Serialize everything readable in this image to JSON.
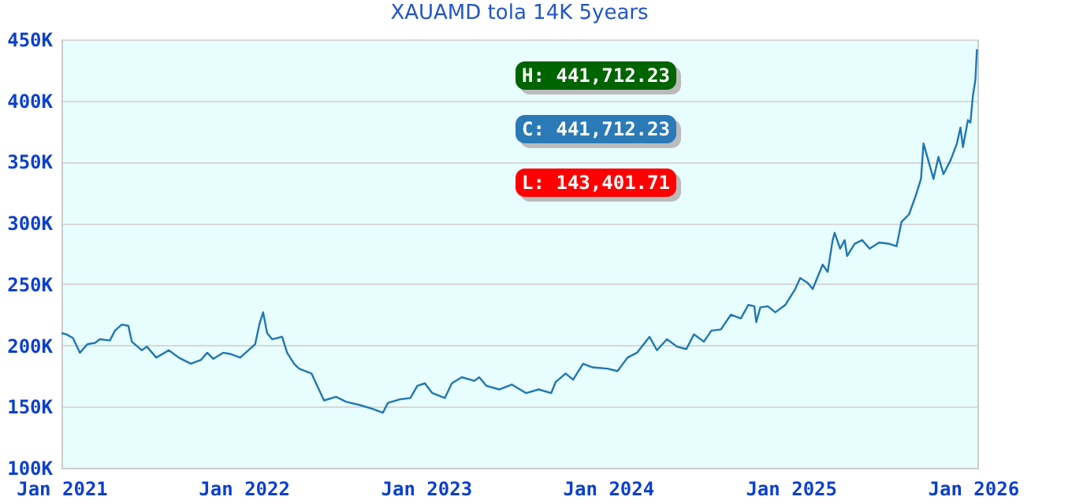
{
  "chart_data": {
    "type": "line",
    "title": "XAUAMD tola 14K 5years",
    "x": [
      "2021-01-01",
      "2021-01-11",
      "2021-01-24",
      "2021-02-07",
      "2021-02-22",
      "2021-03-09",
      "2021-03-19",
      "2021-04-08",
      "2021-04-18",
      "2021-05-02",
      "2021-05-15",
      "2021-05-22",
      "2021-06-11",
      "2021-06-21",
      "2021-07-10",
      "2021-08-04",
      "2021-08-24",
      "2021-09-17",
      "2021-10-07",
      "2021-10-20",
      "2021-11-01",
      "2021-11-21",
      "2021-12-05",
      "2021-12-25",
      "2022-01-24",
      "2022-02-02",
      "2022-02-09",
      "2022-02-17",
      "2022-02-27",
      "2022-03-19",
      "2022-03-29",
      "2022-04-12",
      "2022-04-22",
      "2022-05-17",
      "2022-05-27",
      "2022-06-11",
      "2022-07-05",
      "2022-07-25",
      "2022-08-24",
      "2022-09-17",
      "2022-10-07",
      "2022-10-17",
      "2022-11-11",
      "2022-12-01",
      "2022-12-15",
      "2022-12-30",
      "2023-01-14",
      "2023-02-08",
      "2023-02-22",
      "2023-03-14",
      "2023-04-08",
      "2023-04-18",
      "2023-05-02",
      "2023-05-28",
      "2023-06-22",
      "2023-07-21",
      "2023-08-15",
      "2023-09-09",
      "2023-09-18",
      "2023-10-08",
      "2023-10-23",
      "2023-11-12",
      "2023-12-01",
      "2023-12-31",
      "2024-01-20",
      "2024-02-09",
      "2024-02-28",
      "2024-03-24",
      "2024-04-08",
      "2024-04-28",
      "2024-05-18",
      "2024-06-06",
      "2024-06-21",
      "2024-07-11",
      "2024-07-26",
      "2024-08-14",
      "2024-09-03",
      "2024-09-23",
      "2024-10-08",
      "2024-10-20",
      "2024-10-24",
      "2024-11-01",
      "2024-11-16",
      "2024-12-01",
      "2024-12-21",
      "2025-01-10",
      "2025-01-20",
      "2025-02-04",
      "2025-02-14",
      "2025-03-06",
      "2025-03-16",
      "2025-03-26",
      "2025-03-30",
      "2025-04-10",
      "2025-04-19",
      "2025-04-24",
      "2025-05-09",
      "2025-05-24",
      "2025-06-08",
      "2025-06-27",
      "2025-07-17",
      "2025-08-01",
      "2025-08-11",
      "2025-08-26",
      "2025-09-09",
      "2025-09-19",
      "2025-09-24",
      "2025-10-14",
      "2025-10-24",
      "2025-11-03",
      "2025-11-17",
      "2025-11-30",
      "2025-12-07",
      "2025-12-12",
      "2025-12-22",
      "2025-12-27",
      "2026-01-01",
      "2026-01-06",
      "2026-01-09"
    ],
    "series": [
      {
        "color": "#1f77b4",
        "values": [
          210000,
          209000,
          206000,
          194000,
          201000,
          202000,
          205000,
          204000,
          212000,
          217000,
          216000,
          203000,
          196000,
          199000,
          190000,
          196000,
          190000,
          185000,
          188000,
          194000,
          189000,
          194000,
          193000,
          190000,
          201000,
          218000,
          227000,
          210000,
          205000,
          207000,
          194000,
          185000,
          181000,
          177000,
          168000,
          155000,
          158000,
          154000,
          151000,
          148000,
          145000,
          153000,
          156000,
          157000,
          167000,
          169000,
          161000,
          157000,
          169000,
          174000,
          171000,
          174000,
          167000,
          164000,
          168000,
          161000,
          164000,
          161000,
          170000,
          177000,
          172000,
          185000,
          182000,
          181000,
          179000,
          190000,
          194000,
          207000,
          196000,
          205000,
          199000,
          197000,
          209000,
          203000,
          212000,
          213000,
          225000,
          222000,
          233000,
          232000,
          219000,
          231000,
          232000,
          227000,
          233000,
          246000,
          255000,
          251000,
          246000,
          266000,
          260000,
          286000,
          292000,
          279000,
          286000,
          273000,
          283000,
          286000,
          279000,
          284000,
          283000,
          281000,
          301000,
          307000,
          323000,
          336000,
          365000,
          336000,
          354000,
          340000,
          351000,
          365000,
          378000,
          362000,
          384000,
          382000,
          404000,
          417000,
          442000
        ]
      }
    ],
    "xlim": [
      "2021-01-01",
      "2026-01-10"
    ],
    "xticks": [
      {
        "value": "2021-01-01",
        "label": "Jan 2021"
      },
      {
        "value": "2022-01-01",
        "label": "Jan 2022"
      },
      {
        "value": "2023-01-01",
        "label": "Jan 2023"
      },
      {
        "value": "2024-01-01",
        "label": "Jan 2024"
      },
      {
        "value": "2025-01-01",
        "label": "Jan 2025"
      },
      {
        "value": "2026-01-01",
        "label": "Jan 2026"
      }
    ],
    "ylim": [
      100000,
      450000
    ],
    "yticks": [
      {
        "value": 100000,
        "label": "100K"
      },
      {
        "value": 150000,
        "label": "150K"
      },
      {
        "value": 200000,
        "label": "200K"
      },
      {
        "value": 250000,
        "label": "250K"
      },
      {
        "value": 300000,
        "label": "300K"
      },
      {
        "value": 350000,
        "label": "350K"
      },
      {
        "value": 400000,
        "label": "400K"
      },
      {
        "value": 450000,
        "label": "450K"
      }
    ],
    "grid": "y",
    "marker": "none",
    "line_style": "solid",
    "annotations": [
      "H: 441,712.23",
      "C: 441,712.23",
      "L: 143,401.71"
    ]
  }
}
